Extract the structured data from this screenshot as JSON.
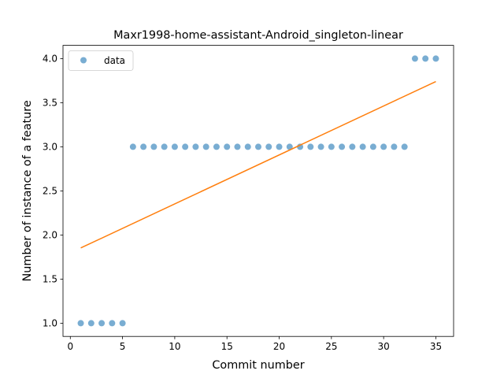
{
  "chart_data": {
    "type": "scatter",
    "title": "Maxr1998-home-assistant-Android_singleton-linear",
    "xlabel": "Commit number",
    "ylabel": "Number of instance of a feature",
    "xlim": [
      -0.7,
      36.7
    ],
    "ylim": [
      0.85,
      4.15
    ],
    "xticks": [
      0,
      5,
      10,
      15,
      20,
      25,
      30,
      35
    ],
    "yticks": [
      1.0,
      1.5,
      2.0,
      2.5,
      3.0,
      3.5,
      4.0
    ],
    "ytick_labels": [
      "1.0",
      "1.5",
      "2.0",
      "2.5",
      "3.0",
      "3.5",
      "4.0"
    ],
    "legend": {
      "placement": "upper-left",
      "entries": [
        "data"
      ]
    },
    "grid": false,
    "series": [
      {
        "name": "data",
        "kind": "scatter",
        "color": "#1f77b4",
        "x": [
          1,
          2,
          3,
          4,
          5,
          6,
          7,
          8,
          9,
          10,
          11,
          12,
          13,
          14,
          15,
          16,
          17,
          18,
          19,
          20,
          21,
          22,
          23,
          24,
          25,
          26,
          27,
          28,
          29,
          30,
          31,
          32,
          33,
          34,
          35
        ],
        "y": [
          1,
          1,
          1,
          1,
          1,
          3,
          3,
          3,
          3,
          3,
          3,
          3,
          3,
          3,
          3,
          3,
          3,
          3,
          3,
          3,
          3,
          3,
          3,
          3,
          3,
          3,
          3,
          3,
          3,
          3,
          3,
          3,
          4,
          4,
          4
        ]
      },
      {
        "kind": "line",
        "color": "#ff7f0e",
        "x": [
          1,
          35
        ],
        "y": [
          1.853,
          3.74
        ]
      }
    ]
  }
}
